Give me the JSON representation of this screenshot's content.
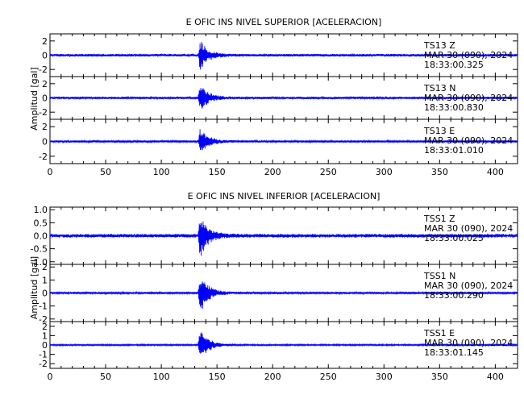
{
  "chart_data": [
    {
      "type": "line",
      "title": "E OFIC INS NIVEL SUPERIOR [ACELERACION]",
      "ylabel": "Amplitud [gal]",
      "xlim": [
        0,
        420
      ],
      "x_ticks": [
        "0",
        "50",
        "100",
        "150",
        "200",
        "250",
        "300",
        "350",
        "400"
      ],
      "series_color": "#0000ff",
      "event_onset_s": 133,
      "traces": [
        {
          "ylim": [
            -3,
            3
          ],
          "y_ticks": [
            "-2",
            "0",
            "2"
          ],
          "peak_abs": 2.7,
          "noise_abs": 0.18,
          "station": "TS13  Z",
          "date": "MAR 30 (090), 2024",
          "time": "18:33:00.325"
        },
        {
          "ylim": [
            -3,
            3
          ],
          "y_ticks": [
            "-2",
            "0",
            "2"
          ],
          "peak_abs": 2.6,
          "noise_abs": 0.16,
          "station": "TS13  N",
          "date": "MAR 30 (090), 2024",
          "time": "18:33:00.830"
        },
        {
          "ylim": [
            -3,
            3
          ],
          "y_ticks": [
            "-2",
            "0",
            "2"
          ],
          "peak_abs": 2.3,
          "noise_abs": 0.14,
          "station": "TS13  E",
          "date": "MAR 30 (090), 2024",
          "time": "18:33:01.010"
        }
      ]
    },
    {
      "type": "line",
      "title": "E OFIC INS NIVEL INFERIOR [ACELERACION]",
      "ylabel": "Amplitud [gal]",
      "xlim": [
        0,
        420
      ],
      "x_ticks": [
        "0",
        "50",
        "100",
        "150",
        "200",
        "250",
        "300",
        "350",
        "400"
      ],
      "series_color": "#0000ff",
      "event_onset_s": 133,
      "traces": [
        {
          "ylim": [
            -1.1,
            1.1
          ],
          "y_ticks": [
            "-1.0",
            "-0.5",
            "0.0",
            "0.5",
            "1.0"
          ],
          "peak_abs": 1.05,
          "noise_abs": 0.07,
          "station": "TSS1  Z",
          "date": "MAR 30 (090), 2024",
          "time": "18:33:00.025"
        },
        {
          "ylim": [
            -2.2,
            2.2
          ],
          "y_ticks": [
            "-2",
            "-1",
            "0",
            "1",
            "2"
          ],
          "peak_abs": 2.1,
          "noise_abs": 0.08,
          "station": "TSS1  N",
          "date": "MAR 30 (090), 2024",
          "time": "18:33:00.290"
        },
        {
          "ylim": [
            -2.5,
            2.5
          ],
          "y_ticks": [
            "-2",
            "-1",
            "0",
            "1",
            "2"
          ],
          "peak_abs": 2.4,
          "noise_abs": 0.08,
          "station": "TSS1  E",
          "date": "MAR 30 (090), 2024",
          "time": "18:33:01.145"
        }
      ]
    }
  ]
}
